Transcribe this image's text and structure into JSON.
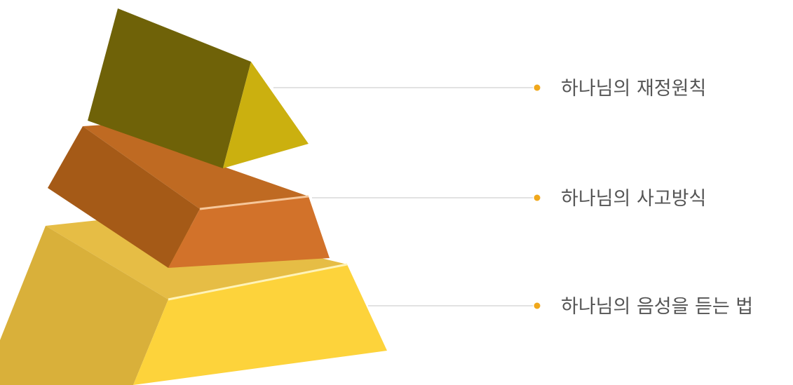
{
  "colors": {
    "leader_line": "#d9d9d9",
    "bullet": "#f0a81c",
    "label_text": "#555555",
    "tier_top": {
      "front": "#6f6208",
      "side": "#cbb00f",
      "top": "#8a7a10"
    },
    "tier_middle": {
      "front": "#a55a17",
      "side": "#d2722a",
      "top": "#bf6a22"
    },
    "tier_bottom": {
      "front": "#d9b03a",
      "side": "#fdd33b",
      "top": "#e9c04a"
    }
  },
  "tiers": [
    {
      "label": "하나님의 재정원칙"
    },
    {
      "label": "하나님의 사고방식"
    },
    {
      "label": "하나님의 음성을 듣는 법"
    }
  ]
}
